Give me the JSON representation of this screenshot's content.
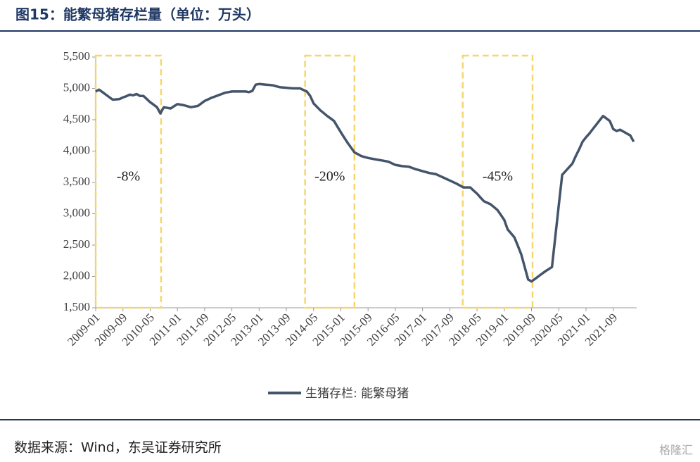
{
  "header": {
    "title": "图15：能繁母猪存栏量（单位：万头）"
  },
  "chart_data": {
    "type": "line",
    "categories": [
      "2009-01",
      null,
      null,
      null,
      null,
      null,
      null,
      null,
      "2009-09",
      null,
      null,
      null,
      null,
      null,
      null,
      null,
      "2010-05",
      null,
      null,
      null,
      null,
      null,
      null,
      null,
      "2011-01",
      null,
      null,
      null,
      null,
      null,
      null,
      null,
      "2011-09",
      null,
      null,
      null,
      null,
      null,
      null,
      null,
      "2012-05",
      null,
      null,
      null,
      null,
      null,
      null,
      null,
      "2013-01",
      null,
      null,
      null,
      null,
      null,
      null,
      null,
      "2013-09",
      null,
      null,
      null,
      null,
      null,
      null,
      null,
      "2014-05",
      null,
      null,
      null,
      null,
      null,
      null,
      null,
      "2015-01",
      null,
      null,
      null,
      null,
      null,
      null,
      null,
      "2015-09",
      null,
      null,
      null,
      null,
      null,
      null,
      null,
      "2016-05",
      null,
      null,
      null,
      null,
      null,
      null,
      null,
      "2017-01",
      null,
      null,
      null,
      null,
      null,
      null,
      null,
      "2017-09",
      null,
      null,
      null,
      null,
      null,
      null,
      null,
      "2018-05",
      null,
      null,
      null,
      null,
      null,
      null,
      null,
      "2019-01",
      null,
      null,
      null,
      null,
      null,
      null,
      null,
      "2019-09",
      null,
      null,
      null,
      null,
      null,
      null,
      null,
      "2020-05",
      null,
      null,
      null,
      null,
      null,
      null,
      null,
      "2021-01",
      null,
      null,
      null,
      null,
      null,
      null,
      null,
      "2021-09",
      null,
      null,
      null,
      null,
      null,
      null
    ],
    "series": [
      {
        "name": "生猪存栏: 能繁母猪",
        "color": "#44546a",
        "values": [
          4950,
          4980,
          4940,
          4900,
          4860,
          4820,
          4825,
          4830,
          4855,
          4875,
          4900,
          4890,
          4910,
          4880,
          4880,
          4830,
          4780,
          4740,
          4700,
          4600,
          4700,
          4690,
          4680,
          4715,
          4750,
          4740,
          4730,
          4715,
          4700,
          4710,
          4720,
          4760,
          4800,
          4825,
          4850,
          4870,
          4890,
          4910,
          4930,
          4940,
          4950,
          4950,
          4950,
          4950,
          4950,
          4940,
          4960,
          5060,
          5070,
          5065,
          5060,
          5055,
          5050,
          5035,
          5020,
          5015,
          5010,
          5005,
          5000,
          5000,
          5000,
          4975,
          4950,
          4880,
          4760,
          4705,
          4650,
          4605,
          4560,
          4520,
          4480,
          4390,
          4300,
          4215,
          4130,
          4055,
          3980,
          3950,
          3920,
          3905,
          3890,
          3880,
          3870,
          3860,
          3850,
          3840,
          3830,
          3805,
          3780,
          3770,
          3760,
          3755,
          3750,
          3730,
          3710,
          3695,
          3680,
          3665,
          3650,
          3640,
          3630,
          3605,
          3580,
          3555,
          3530,
          3505,
          3480,
          3450,
          3420,
          3420,
          3420,
          3370,
          3320,
          3260,
          3200,
          3175,
          3150,
          3105,
          3060,
          2980,
          2900,
          2750,
          2685,
          2620,
          2485,
          2350,
          2150,
          1950,
          1920,
          1960,
          2000,
          2040,
          2080,
          2115,
          2150,
          2640,
          3130,
          3620,
          3680,
          3740,
          3800,
          3920,
          4030,
          4150,
          4220,
          4280,
          4350,
          4420,
          4490,
          4560,
          4520,
          4480,
          4350,
          4320,
          4340,
          4310,
          4280,
          4250,
          4150
        ]
      }
    ],
    "ylim": [
      1500,
      5500
    ],
    "yticks": [
      {
        "value": 1500,
        "label": "1,500"
      },
      {
        "value": 2000,
        "label": "2,000"
      },
      {
        "value": 2500,
        "label": "2,500"
      },
      {
        "value": 3000,
        "label": "3,000"
      },
      {
        "value": 3500,
        "label": "3,500"
      },
      {
        "value": 4000,
        "label": "4,000"
      },
      {
        "value": 4500,
        "label": "4,500"
      },
      {
        "value": 5000,
        "label": "5,000"
      },
      {
        "value": 5500,
        "label": "5,500"
      }
    ],
    "annotations": [
      "-8%",
      "-20%",
      "-45%"
    ],
    "legend": "bottom"
  },
  "footer": {
    "source": "数据来源：Wind，东吴证券研究所",
    "watermark": "格隆汇"
  }
}
